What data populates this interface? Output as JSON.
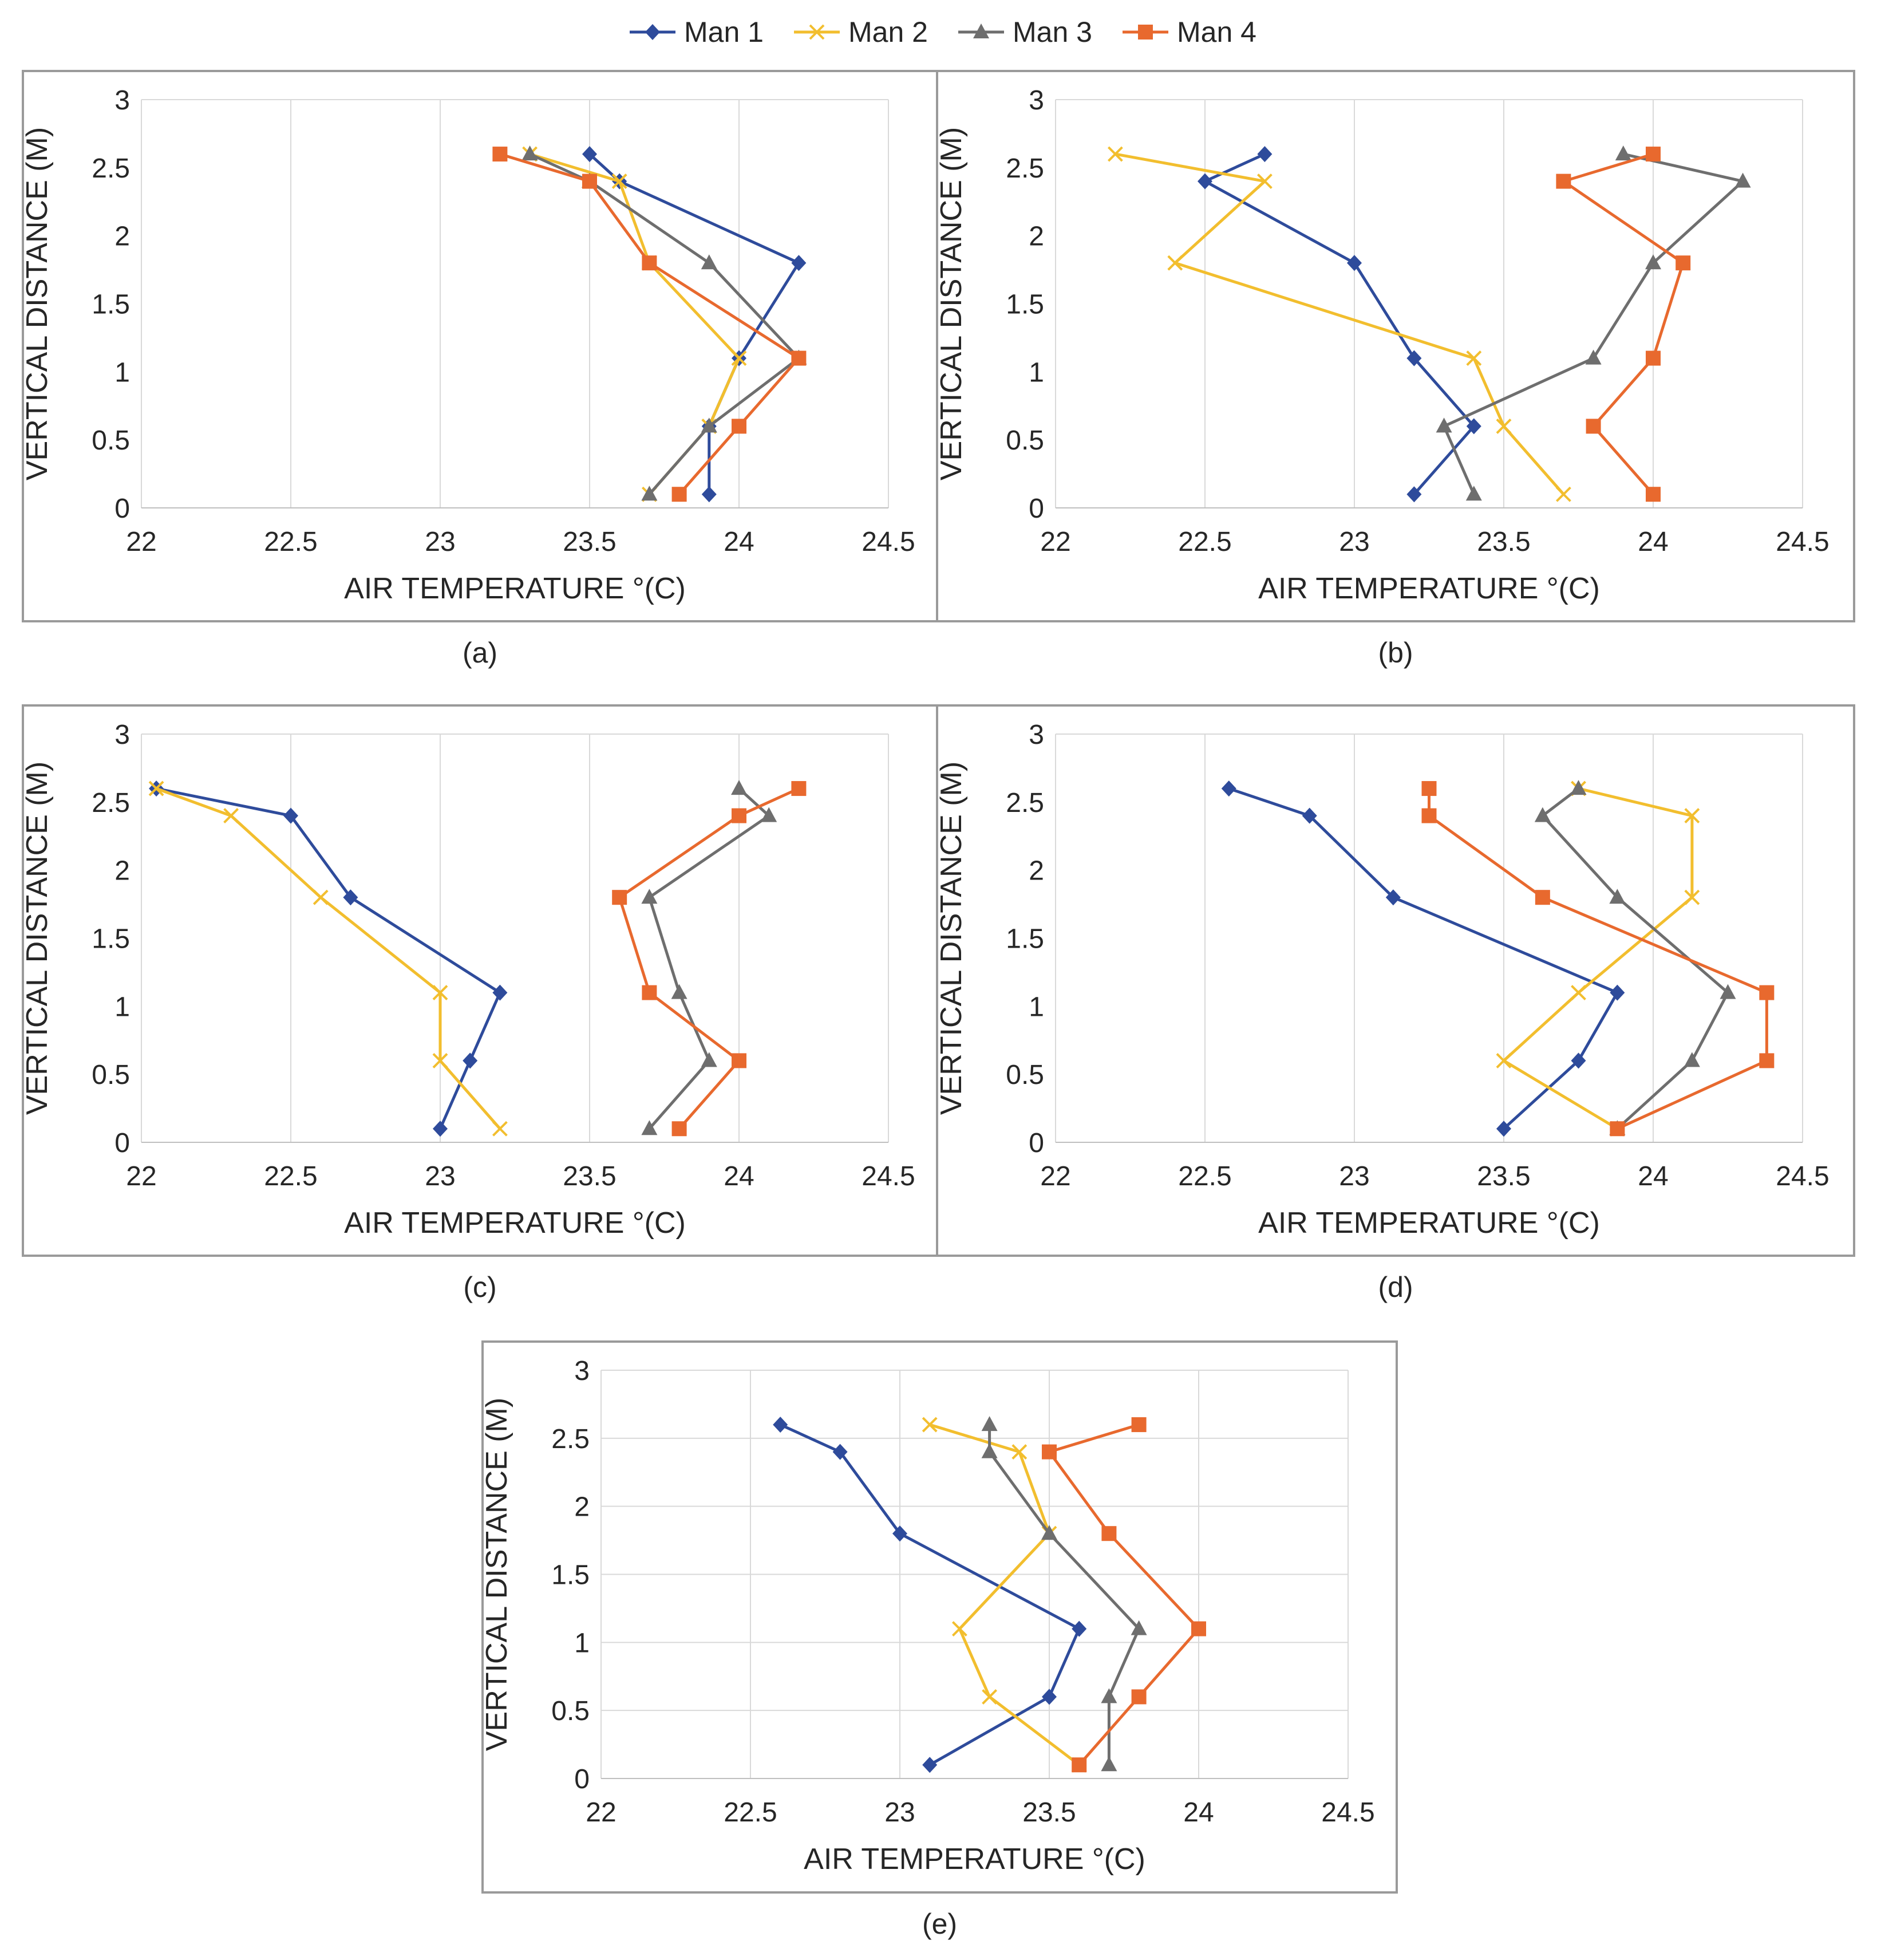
{
  "legend": {
    "items": [
      {
        "label": "Man 1",
        "color": "#2E4B9B",
        "marker": "diamond"
      },
      {
        "label": "Man 2",
        "color": "#F2BE2E",
        "marker": "x"
      },
      {
        "label": "Man 3",
        "color": "#6E6E6E",
        "marker": "triangle"
      },
      {
        "label": "Man 4",
        "color": "#E8692E",
        "marker": "square"
      }
    ]
  },
  "chart_data": [
    {
      "type": "line",
      "panel_label": "(a)",
      "xlabel": "AIR TEMPERATURE °(C)",
      "ylabel": "VERTICAL DISTANCE (M)",
      "xlim": [
        22,
        24.5
      ],
      "ylim": [
        0,
        3
      ],
      "xticks": [
        "22",
        "22.5",
        "23",
        "23.5",
        "24",
        "24.5"
      ],
      "yticks": [
        "0",
        "0.5",
        "1",
        "1.5",
        "2",
        "2.5",
        "3"
      ],
      "grid": "vertical",
      "series": [
        {
          "name": "Man 1",
          "points": [
            [
              23.9,
              0.1
            ],
            [
              23.9,
              0.6
            ],
            [
              24.0,
              1.1
            ],
            [
              24.2,
              1.8
            ],
            [
              23.6,
              2.4
            ],
            [
              23.5,
              2.6
            ]
          ]
        },
        {
          "name": "Man 2",
          "points": [
            [
              23.7,
              0.1
            ],
            [
              23.9,
              0.6
            ],
            [
              24.0,
              1.1
            ],
            [
              23.7,
              1.8
            ],
            [
              23.6,
              2.4
            ],
            [
              23.3,
              2.6
            ]
          ]
        },
        {
          "name": "Man 3",
          "points": [
            [
              23.7,
              0.1
            ],
            [
              23.9,
              0.6
            ],
            [
              24.2,
              1.1
            ],
            [
              23.9,
              1.8
            ],
            [
              23.5,
              2.4
            ],
            [
              23.3,
              2.6
            ]
          ]
        },
        {
          "name": "Man 4",
          "points": [
            [
              23.8,
              0.1
            ],
            [
              24.0,
              0.6
            ],
            [
              24.2,
              1.1
            ],
            [
              23.7,
              1.8
            ],
            [
              23.5,
              2.4
            ],
            [
              23.2,
              2.6
            ]
          ]
        }
      ]
    },
    {
      "type": "line",
      "panel_label": "(b)",
      "xlabel": "AIR TEMPERATURE °(C)",
      "ylabel": "VERTICAL DISTANCE (M)",
      "xlim": [
        22,
        24.5
      ],
      "ylim": [
        0,
        3
      ],
      "xticks": [
        "22",
        "22.5",
        "23",
        "23.5",
        "24",
        "24.5"
      ],
      "yticks": [
        "0",
        "0.5",
        "1",
        "1.5",
        "2",
        "2.5",
        "3"
      ],
      "grid": "vertical",
      "series": [
        {
          "name": "Man 1",
          "points": [
            [
              23.2,
              0.1
            ],
            [
              23.4,
              0.6
            ],
            [
              23.2,
              1.1
            ],
            [
              23.0,
              1.8
            ],
            [
              22.5,
              2.4
            ],
            [
              22.7,
              2.6
            ]
          ]
        },
        {
          "name": "Man 2",
          "points": [
            [
              23.7,
              0.1
            ],
            [
              23.5,
              0.6
            ],
            [
              23.4,
              1.1
            ],
            [
              22.4,
              1.8
            ],
            [
              22.7,
              2.4
            ],
            [
              22.2,
              2.6
            ]
          ]
        },
        {
          "name": "Man 3",
          "points": [
            [
              23.4,
              0.1
            ],
            [
              23.3,
              0.6
            ],
            [
              23.8,
              1.1
            ],
            [
              24.0,
              1.8
            ],
            [
              24.3,
              2.4
            ],
            [
              23.9,
              2.6
            ]
          ]
        },
        {
          "name": "Man 4",
          "points": [
            [
              24.0,
              0.1
            ],
            [
              23.8,
              0.6
            ],
            [
              24.0,
              1.1
            ],
            [
              24.1,
              1.8
            ],
            [
              23.7,
              2.4
            ],
            [
              24.0,
              2.6
            ]
          ]
        }
      ]
    },
    {
      "type": "line",
      "panel_label": "(c)",
      "xlabel": "AIR TEMPERATURE °(C)",
      "ylabel": "VERTICAL DISTANCE (M)",
      "xlim": [
        22,
        24.5
      ],
      "ylim": [
        0,
        3
      ],
      "xticks": [
        "22",
        "22.5",
        "23",
        "23.5",
        "24",
        "24.5"
      ],
      "yticks": [
        "0",
        "0.5",
        "1",
        "1.5",
        "2",
        "2.5",
        "3"
      ],
      "grid": "vertical",
      "series": [
        {
          "name": "Man 1",
          "points": [
            [
              23.0,
              0.1
            ],
            [
              23.1,
              0.6
            ],
            [
              23.2,
              1.1
            ],
            [
              22.7,
              1.8
            ],
            [
              22.5,
              2.4
            ],
            [
              22.05,
              2.6
            ]
          ]
        },
        {
          "name": "Man 2",
          "points": [
            [
              23.2,
              0.1
            ],
            [
              23.0,
              0.6
            ],
            [
              23.0,
              1.1
            ],
            [
              22.6,
              1.8
            ],
            [
              22.3,
              2.4
            ],
            [
              22.05,
              2.6
            ]
          ]
        },
        {
          "name": "Man 3",
          "points": [
            [
              23.7,
              0.1
            ],
            [
              23.9,
              0.6
            ],
            [
              23.8,
              1.1
            ],
            [
              23.7,
              1.8
            ],
            [
              24.1,
              2.4
            ],
            [
              24.0,
              2.6
            ]
          ]
        },
        {
          "name": "Man 4",
          "points": [
            [
              23.8,
              0.1
            ],
            [
              24.0,
              0.6
            ],
            [
              23.7,
              1.1
            ],
            [
              23.6,
              1.8
            ],
            [
              24.0,
              2.4
            ],
            [
              24.2,
              2.6
            ]
          ]
        }
      ]
    },
    {
      "type": "line",
      "panel_label": "(d)",
      "xlabel": "AIR TEMPERATURE °(C)",
      "ylabel": "VERTICAL DISTANCE (M)",
      "xlim": [
        22,
        24.5
      ],
      "ylim": [
        0,
        3
      ],
      "xticks": [
        "22",
        "22.5",
        "23",
        "23.5",
        "24",
        "24.5"
      ],
      "yticks": [
        "0",
        "0.5",
        "1",
        "1.5",
        "2",
        "2.5",
        "3"
      ],
      "grid": "vertical",
      "series": [
        {
          "name": "Man 1",
          "points": [
            [
              23.5,
              0.1
            ],
            [
              23.75,
              0.6
            ],
            [
              23.88,
              1.1
            ],
            [
              23.13,
              1.8
            ],
            [
              22.85,
              2.4
            ],
            [
              22.58,
              2.6
            ]
          ]
        },
        {
          "name": "Man 2",
          "points": [
            [
              23.88,
              0.1
            ],
            [
              23.5,
              0.6
            ],
            [
              23.75,
              1.1
            ],
            [
              24.13,
              1.8
            ],
            [
              24.13,
              2.4
            ],
            [
              23.75,
              2.6
            ]
          ]
        },
        {
          "name": "Man 3",
          "points": [
            [
              23.88,
              0.1
            ],
            [
              24.13,
              0.6
            ],
            [
              24.25,
              1.1
            ],
            [
              23.88,
              1.8
            ],
            [
              23.63,
              2.4
            ],
            [
              23.75,
              2.6
            ]
          ]
        },
        {
          "name": "Man 4",
          "points": [
            [
              23.88,
              0.1
            ],
            [
              24.38,
              0.6
            ],
            [
              24.38,
              1.1
            ],
            [
              23.63,
              1.8
            ],
            [
              23.25,
              2.4
            ],
            [
              23.25,
              2.6
            ]
          ]
        }
      ]
    },
    {
      "type": "line",
      "panel_label": "(e)",
      "xlabel": "AIR TEMPERATURE °(C)",
      "ylabel": "VERTICAL DISTANCE (M)",
      "xlim": [
        22,
        24.5
      ],
      "ylim": [
        0,
        3
      ],
      "xticks": [
        "22",
        "22.5",
        "23",
        "23.5",
        "24",
        "24.5"
      ],
      "yticks": [
        "0",
        "0.5",
        "1",
        "1.5",
        "2",
        "2.5",
        "3"
      ],
      "grid": "both",
      "series": [
        {
          "name": "Man 1",
          "points": [
            [
              23.1,
              0.1
            ],
            [
              23.5,
              0.6
            ],
            [
              23.6,
              1.1
            ],
            [
              23.0,
              1.8
            ],
            [
              22.8,
              2.4
            ],
            [
              22.6,
              2.6
            ]
          ]
        },
        {
          "name": "Man 2",
          "points": [
            [
              23.6,
              0.1
            ],
            [
              23.3,
              0.6
            ],
            [
              23.2,
              1.1
            ],
            [
              23.5,
              1.8
            ],
            [
              23.4,
              2.4
            ],
            [
              23.1,
              2.6
            ]
          ]
        },
        {
          "name": "Man 3",
          "points": [
            [
              23.7,
              0.1
            ],
            [
              23.7,
              0.6
            ],
            [
              23.8,
              1.1
            ],
            [
              23.5,
              1.8
            ],
            [
              23.3,
              2.4
            ],
            [
              23.3,
              2.6
            ]
          ]
        },
        {
          "name": "Man 4",
          "points": [
            [
              23.6,
              0.1
            ],
            [
              23.8,
              0.6
            ],
            [
              24.0,
              1.1
            ],
            [
              23.7,
              1.8
            ],
            [
              23.5,
              2.4
            ],
            [
              23.8,
              2.6
            ]
          ]
        }
      ]
    }
  ]
}
